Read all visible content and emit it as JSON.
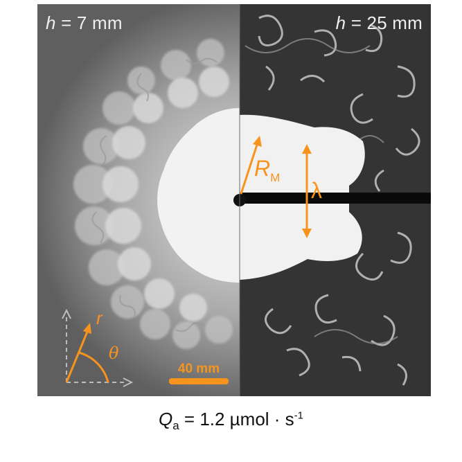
{
  "left_panel": {
    "h_symbol": "h",
    "h_value": " = 7 mm"
  },
  "right_panel": {
    "h_symbol": "h",
    "h_value": " = 25 mm"
  },
  "annotations": {
    "radius_symbol": "R",
    "radius_subscript": "M",
    "wavelength_symbol": "λ",
    "polar_r": "r",
    "polar_theta": "θ",
    "scale_bar": "40 mm"
  },
  "caption": {
    "symbol": "Q",
    "subscript": "a",
    "value": " = 1.2 µmol · s",
    "exponent": "-1"
  },
  "colors": {
    "annotation": "#f7941d",
    "axes_dashed": "#bdbdbd"
  }
}
